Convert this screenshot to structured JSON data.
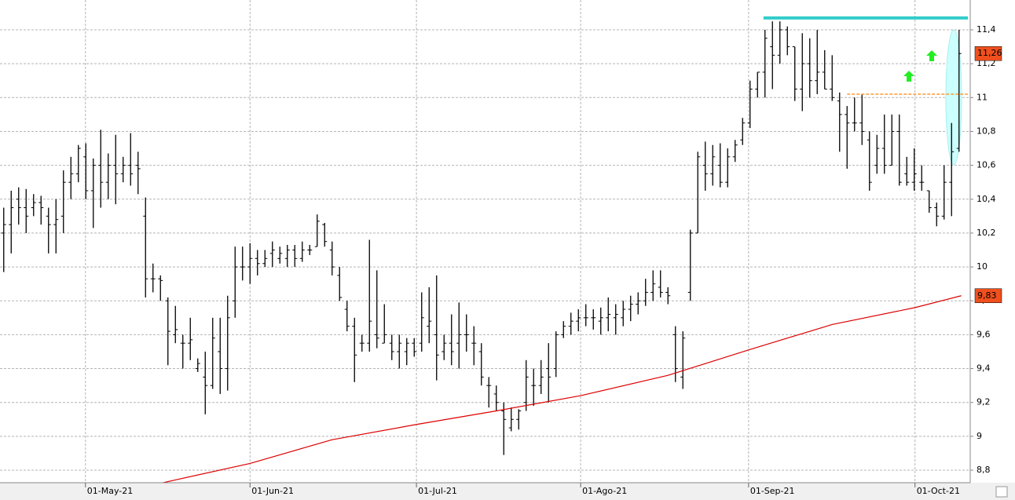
{
  "chart_data": {
    "type": "ohlc",
    "categories": [
      null,
      null,
      null,
      null,
      null,
      null,
      null,
      null,
      null,
      null,
      null,
      null,
      null,
      null,
      null,
      null,
      null,
      null,
      null,
      null,
      null,
      null,
      null,
      null,
      null,
      null,
      null,
      null,
      null,
      null,
      null,
      null,
      null,
      null,
      null,
      null,
      null,
      null,
      null,
      null,
      null,
      null,
      null,
      null,
      null,
      null,
      null,
      null,
      null,
      null,
      null,
      null,
      null,
      null,
      null,
      null,
      null,
      null,
      null,
      null,
      null,
      null,
      null,
      null,
      null,
      null,
      null,
      null,
      null,
      null,
      null,
      null,
      null,
      null,
      null,
      null,
      null,
      null,
      null,
      null,
      null,
      null,
      null,
      null,
      null,
      null,
      null,
      null,
      null,
      null,
      null,
      null,
      null,
      null,
      null,
      null,
      null,
      null,
      null,
      null,
      null,
      null,
      null,
      null,
      null,
      null,
      null,
      null,
      null,
      null,
      null,
      null,
      null,
      null,
      null,
      null,
      null,
      null,
      null,
      null,
      null,
      null,
      null,
      null,
      null,
      null,
      null,
      null,
      null
    ],
    "high": [
      10.35,
      10.45,
      10.47,
      10.46,
      10.43,
      10.42,
      10.35,
      10.4,
      10.57,
      10.65,
      10.72,
      10.73,
      10.64,
      10.81,
      10.67,
      10.78,
      10.65,
      10.79,
      10.68,
      10.41,
      10.02,
      9.95,
      9.82,
      9.77,
      9.6,
      9.7,
      9.46,
      9.5,
      9.7,
      9.7,
      9.83,
      10.12,
      10.12,
      10.14,
      10.1,
      10.1,
      10.15,
      10.12,
      10.13,
      10.13,
      10.15,
      10.13,
      10.31,
      10.26,
      10.15,
      10.0,
      9.8,
      9.7,
      9.6,
      10.16,
      9.98,
      9.78,
      9.6,
      9.6,
      9.58,
      9.58,
      9.85,
      9.88,
      9.95,
      9.6,
      9.72,
      9.79,
      9.72,
      9.65,
      9.55,
      9.35,
      9.3,
      9.2,
      9.17,
      9.16,
      9.45,
      9.4,
      9.45,
      9.55,
      9.62,
      9.68,
      9.73,
      9.75,
      9.78,
      9.75,
      9.76,
      9.82,
      9.78,
      9.8,
      9.83,
      9.85,
      9.93,
      9.98,
      9.98,
      9.88,
      9.65,
      9.62,
      10.22,
      10.68,
      10.74,
      10.72,
      10.73,
      10.7,
      10.75,
      10.88,
      11.1,
      11.15,
      11.4,
      11.45,
      11.45,
      11.42,
      11.3,
      11.38,
      11.35,
      11.4,
      11.28,
      11.25,
      11.03,
      10.95,
      11.0,
      11.02,
      10.8,
      10.78,
      10.9,
      10.9,
      10.9,
      10.65,
      10.7,
      10.6,
      10.45,
      10.38,
      10.6,
      10.85,
      11.4
    ],
    "low": [
      9.97,
      10.08,
      10.25,
      10.2,
      10.3,
      10.25,
      10.08,
      10.08,
      10.2,
      10.4,
      10.5,
      10.4,
      10.23,
      10.35,
      10.4,
      10.37,
      10.5,
      10.48,
      10.43,
      9.82,
      9.85,
      9.8,
      9.42,
      9.55,
      9.4,
      9.45,
      9.38,
      9.13,
      9.28,
      9.25,
      9.27,
      9.7,
      9.92,
      9.9,
      9.95,
      10.0,
      10.0,
      10.02,
      10.0,
      10.0,
      10.03,
      10.07,
      10.12,
      10.12,
      9.95,
      9.8,
      9.62,
      9.32,
      9.5,
      9.5,
      9.52,
      9.55,
      9.45,
      9.4,
      9.42,
      9.47,
      9.5,
      9.55,
      9.33,
      9.45,
      9.42,
      9.4,
      9.5,
      9.42,
      9.3,
      9.17,
      9.15,
      8.89,
      9.03,
      9.04,
      9.15,
      9.18,
      9.25,
      9.2,
      9.35,
      9.58,
      9.6,
      9.62,
      9.65,
      9.63,
      9.6,
      9.62,
      9.6,
      9.65,
      9.68,
      9.72,
      9.77,
      9.8,
      9.82,
      9.78,
      9.32,
      9.28,
      9.8,
      10.2,
      10.45,
      10.48,
      10.47,
      10.47,
      10.62,
      10.72,
      10.82,
      11.0,
      11.0,
      11.05,
      11.2,
      11.25,
      10.98,
      10.92,
      11.0,
      11.02,
      11.05,
      10.98,
      10.68,
      10.58,
      10.8,
      10.72,
      10.45,
      10.55,
      10.55,
      10.6,
      10.48,
      10.48,
      10.45,
      10.45,
      10.32,
      10.24,
      10.28,
      10.3,
      10.68
    ],
    "open": [
      10.2,
      10.25,
      10.4,
      10.35,
      10.35,
      10.38,
      10.3,
      10.25,
      10.3,
      10.5,
      10.55,
      10.65,
      10.45,
      10.6,
      10.5,
      10.6,
      10.55,
      10.6,
      10.6,
      10.3,
      9.93,
      9.93,
      9.8,
      9.6,
      9.55,
      9.55,
      9.4,
      9.35,
      9.3,
      9.5,
      9.4,
      9.8,
      10.0,
      10.0,
      10.05,
      10.02,
      10.08,
      10.05,
      10.05,
      10.1,
      10.05,
      10.1,
      10.12,
      10.25,
      10.1,
      9.95,
      9.75,
      9.65,
      9.55,
      9.55,
      9.6,
      9.55,
      9.55,
      9.5,
      9.5,
      9.55,
      9.55,
      9.65,
      9.6,
      9.5,
      9.55,
      9.55,
      9.6,
      9.55,
      9.5,
      9.3,
      9.25,
      9.15,
      9.05,
      9.1,
      9.2,
      9.3,
      9.3,
      9.4,
      9.4,
      9.6,
      9.65,
      9.68,
      9.7,
      9.7,
      9.68,
      9.7,
      9.7,
      9.7,
      9.75,
      9.78,
      9.8,
      9.85,
      9.88,
      9.85,
      9.6,
      9.35,
      9.85,
      10.2,
      10.6,
      10.55,
      10.6,
      10.5,
      10.65,
      10.75,
      10.85,
      11.05,
      11.15,
      11.3,
      11.25,
      11.4,
      11.3,
      11.05,
      11.2,
      11.1,
      11.15,
      11.05,
      10.98,
      10.9,
      10.85,
      10.85,
      10.75,
      10.6,
      10.7,
      10.6,
      10.8,
      10.55,
      10.5,
      10.5,
      10.45,
      10.35,
      10.3,
      10.5,
      10.7
    ],
    "close": [
      10.25,
      10.35,
      10.35,
      10.3,
      10.38,
      10.35,
      10.25,
      10.28,
      10.5,
      10.55,
      10.7,
      10.45,
      10.6,
      10.5,
      10.6,
      10.55,
      10.6,
      10.55,
      10.58,
      9.93,
      9.93,
      9.92,
      9.62,
      9.63,
      9.55,
      9.57,
      9.43,
      9.3,
      9.58,
      9.4,
      9.7,
      10.0,
      10.0,
      10.05,
      10.02,
      10.05,
      10.1,
      10.08,
      10.1,
      10.05,
      10.1,
      10.1,
      10.27,
      10.15,
      10.0,
      9.82,
      9.65,
      9.48,
      9.55,
      9.68,
      9.58,
      9.6,
      9.5,
      9.55,
      9.55,
      9.5,
      9.7,
      9.68,
      9.48,
      9.55,
      9.5,
      9.6,
      9.6,
      9.55,
      9.35,
      9.3,
      9.2,
      9.1,
      9.1,
      9.15,
      9.35,
      9.3,
      9.35,
      9.35,
      9.6,
      9.65,
      9.68,
      9.7,
      9.7,
      9.7,
      9.7,
      9.72,
      9.72,
      9.75,
      9.78,
      9.8,
      9.85,
      9.9,
      9.85,
      9.83,
      9.4,
      9.58,
      10.2,
      10.65,
      10.55,
      10.65,
      10.5,
      10.65,
      10.72,
      10.85,
      11.05,
      11.15,
      11.35,
      11.25,
      11.4,
      11.3,
      11.05,
      11.2,
      11.1,
      11.15,
      11.05,
      11.0,
      10.9,
      10.85,
      10.85,
      10.8,
      10.5,
      10.7,
      10.6,
      10.8,
      10.5,
      10.5,
      10.55,
      10.5,
      10.35,
      10.3,
      10.5,
      10.68,
      11.26
    ],
    "color": "#000000",
    "ma": {
      "x": [
        20.7,
        33,
        44,
        55.3,
        66,
        77.3,
        89,
        99.8,
        111,
        122.1,
        128.3
      ],
      "values": [
        8.72,
        8.84,
        8.98,
        9.07,
        9.15,
        9.24,
        9.36,
        9.51,
        9.66,
        9.76,
        9.83
      ],
      "color": "#dd0000"
    },
    "hlines": [
      {
        "value": 11.47,
        "from": 101.8,
        "to": 129.2,
        "color": "#33cccc",
        "style": "solid"
      },
      {
        "value": 11.02,
        "from": 113,
        "to": 129.2,
        "color": "#ff9933",
        "style": "dashed"
      }
    ],
    "price_tags": [
      {
        "value": 11.26,
        "label": "11,26",
        "color": "#f0501e"
      },
      {
        "value": 9.83,
        "label": "9,83",
        "color": "#f0501e"
      }
    ],
    "ylim": [
      8.726,
      11.576
    ],
    "yticks": [
      {
        "value": 8.8,
        "label": "8,8"
      },
      9,
      {
        "value": 9.2,
        "label": "9,2"
      },
      {
        "value": 9.4,
        "label": "9,4"
      },
      {
        "value": 9.6,
        "label": "9,6"
      },
      {
        "value": 9.8,
        "label": "9,8"
      },
      10,
      {
        "value": 10.2,
        "label": "10,2"
      },
      {
        "value": 10.4,
        "label": "10,4"
      },
      {
        "value": 10.6,
        "label": "10,6"
      },
      {
        "value": 10.8,
        "label": "10,8"
      },
      11,
      {
        "value": 11.2,
        "label": "11,2"
      },
      {
        "value": 11.4,
        "label": "11,4"
      }
    ],
    "xticks": [
      {
        "value": 10.95,
        "label": "01-May-21"
      },
      {
        "value": 33,
        "label": "01-Jun-21"
      },
      {
        "value": 55.3,
        "label": "01-Jul-21"
      },
      {
        "value": 77.3,
        "label": "01-Ago-21"
      },
      {
        "value": 99.8,
        "label": "01-Sep-21"
      },
      {
        "value": 122.1,
        "label": "01-Oct-21"
      }
    ],
    "grid": true
  }
}
